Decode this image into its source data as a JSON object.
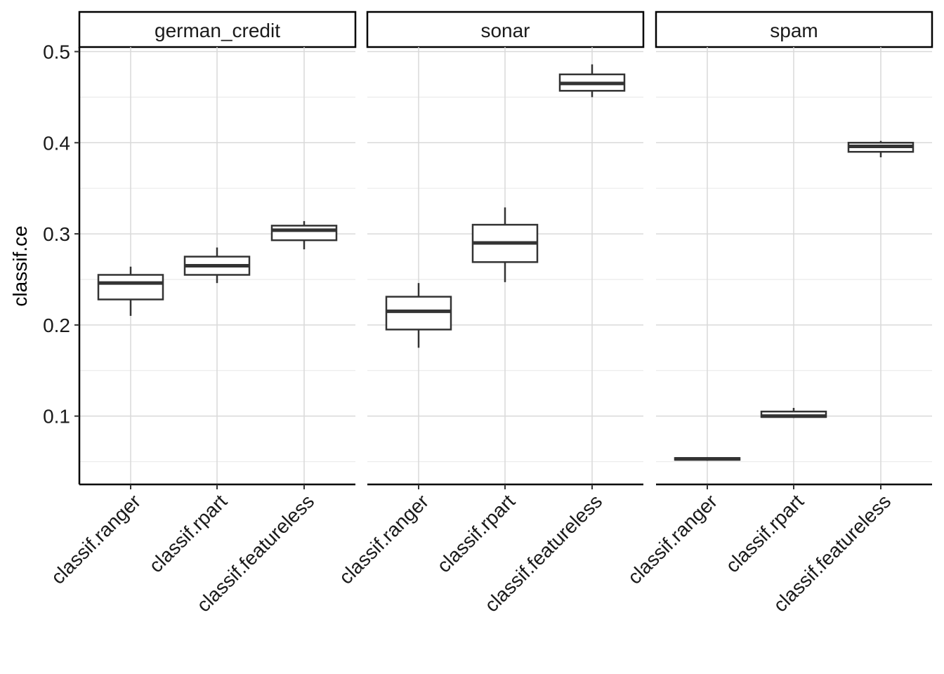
{
  "chart_data": {
    "type": "boxplot",
    "ylabel": "classif.ce",
    "xlabel": "",
    "ylim": [
      0.025,
      0.505
    ],
    "y_ticks": [
      "0.1",
      "0.2",
      "0.3",
      "0.4",
      "0.5"
    ],
    "y_tick_values": [
      0.1,
      0.2,
      0.3,
      0.4,
      0.5
    ],
    "categories": [
      "classif.ranger",
      "classif.rpart",
      "classif.featureless"
    ],
    "grid": true,
    "panels": [
      {
        "name": "german_credit",
        "boxes": [
          {
            "learner": "classif.ranger",
            "min": 0.21,
            "q1": 0.228,
            "median": 0.246,
            "q3": 0.255,
            "max": 0.264
          },
          {
            "learner": "classif.rpart",
            "min": 0.246,
            "q1": 0.255,
            "median": 0.265,
            "q3": 0.275,
            "max": 0.285
          },
          {
            "learner": "classif.featureless",
            "min": 0.283,
            "q1": 0.293,
            "median": 0.304,
            "q3": 0.309,
            "max": 0.314
          }
        ]
      },
      {
        "name": "sonar",
        "boxes": [
          {
            "learner": "classif.ranger",
            "min": 0.175,
            "q1": 0.195,
            "median": 0.215,
            "q3": 0.231,
            "max": 0.246
          },
          {
            "learner": "classif.rpart",
            "min": 0.247,
            "q1": 0.269,
            "median": 0.29,
            "q3": 0.31,
            "max": 0.329
          },
          {
            "learner": "classif.featureless",
            "min": 0.45,
            "q1": 0.457,
            "median": 0.465,
            "q3": 0.475,
            "max": 0.486
          }
        ]
      },
      {
        "name": "spam",
        "boxes": [
          {
            "learner": "classif.ranger",
            "min": 0.051,
            "q1": 0.052,
            "median": 0.053,
            "q3": 0.054,
            "max": 0.055
          },
          {
            "learner": "classif.rpart",
            "min": 0.098,
            "q1": 0.099,
            "median": 0.1,
            "q3": 0.105,
            "max": 0.109
          },
          {
            "learner": "classif.featureless",
            "min": 0.384,
            "q1": 0.39,
            "median": 0.396,
            "q3": 0.4,
            "max": 0.402
          }
        ]
      }
    ]
  }
}
